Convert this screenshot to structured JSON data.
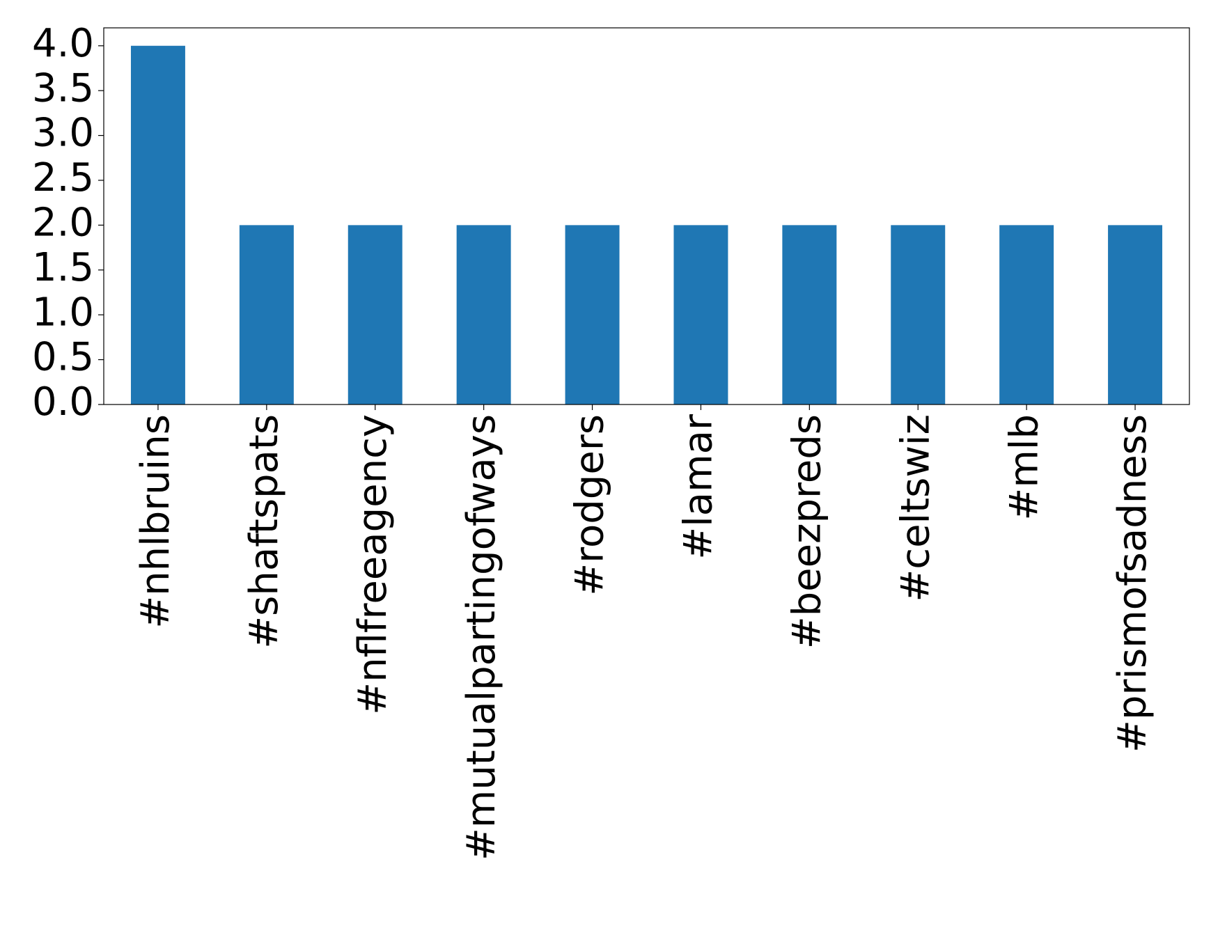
{
  "chart_data": {
    "type": "bar",
    "categories": [
      "#nhlbruins",
      "#shaftspats",
      "#nflfreeagency",
      "#mutualpartingofways",
      "#rodgers",
      "#lamar",
      "#beezpreds",
      "#celtswiz",
      "#mlb",
      "#prismofsadness"
    ],
    "values": [
      4,
      2,
      2,
      2,
      2,
      2,
      2,
      2,
      2,
      2
    ],
    "color": "#1f77b4",
    "ylim": [
      0,
      4.2
    ],
    "yticks": [
      {
        "value": 0,
        "label": "0.0"
      },
      0.5,
      {
        "value": 1,
        "label": "1.0"
      },
      1.5,
      {
        "value": 2,
        "label": "2.0"
      },
      2.5,
      {
        "value": 3,
        "label": "3.0"
      },
      3.5,
      {
        "value": 4,
        "label": "4.0"
      }
    ],
    "grid": false
  }
}
